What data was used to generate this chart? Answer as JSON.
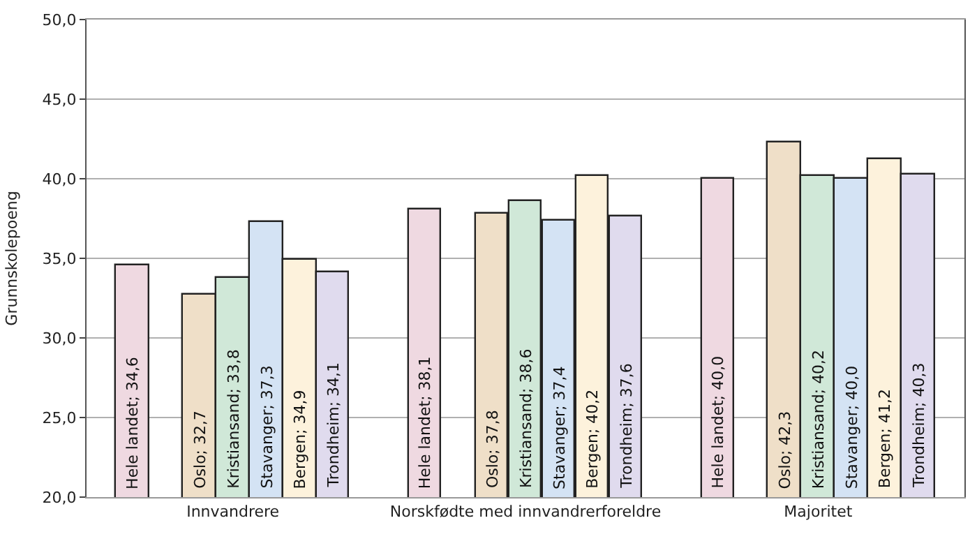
{
  "chart_data": {
    "type": "bar",
    "ylabel": "Grunnskolepoeng",
    "categories": [
      "Innvandrere",
      "Norskfødte med innvandrerforeldre",
      "Majoritet"
    ],
    "series": [
      {
        "color": "#efd9e1",
        "values": [
          34.6,
          38.1,
          40.0
        ],
        "value_labels": [
          "Hele landet; 34,6",
          "Hele landet; 38,1",
          "Hele landet; 40,0"
        ]
      },
      {
        "color": "#efdfc8",
        "values": [
          32.7,
          37.8,
          42.3
        ],
        "value_labels": [
          "Oslo; 32,7",
          "Oslo; 37,8",
          "Oslo; 42,3"
        ]
      },
      {
        "color": "#d0e8d8",
        "values": [
          33.8,
          38.6,
          40.2
        ],
        "value_labels": [
          "Kristiansand; 33,8",
          "Kristiansand; 38,6",
          "Kristiansand; 40,2"
        ]
      },
      {
        "color": "#d4e3f4",
        "values": [
          37.3,
          37.4,
          40.0
        ],
        "value_labels": [
          "Stavanger; 37,3",
          "Stavanger; 37,4",
          "Stavanger; 40,0"
        ]
      },
      {
        "color": "#fdf2dc",
        "values": [
          34.9,
          40.2,
          41.2
        ],
        "value_labels": [
          "Bergen; 34,9",
          "Bergen; 40,2",
          "Bergen; 41,2"
        ]
      },
      {
        "color": "#e0dbee",
        "values": [
          34.1,
          37.6,
          40.3
        ],
        "value_labels": [
          "Trondheim; 34,1",
          "Trondheim; 37,6",
          "Trondheim; 40,3"
        ]
      }
    ],
    "ylim": [
      20,
      50
    ],
    "yticks": [
      {
        "value": 20,
        "label": "20,0"
      },
      {
        "value": 25,
        "label": "25,0"
      },
      {
        "value": 30,
        "label": "30,0"
      },
      {
        "value": 35,
        "label": "35,0"
      },
      {
        "value": 40,
        "label": "40,0"
      },
      {
        "value": 45,
        "label": "45,0"
      },
      {
        "value": 50,
        "label": "50,0"
      }
    ],
    "grid": "y",
    "legend": false
  }
}
